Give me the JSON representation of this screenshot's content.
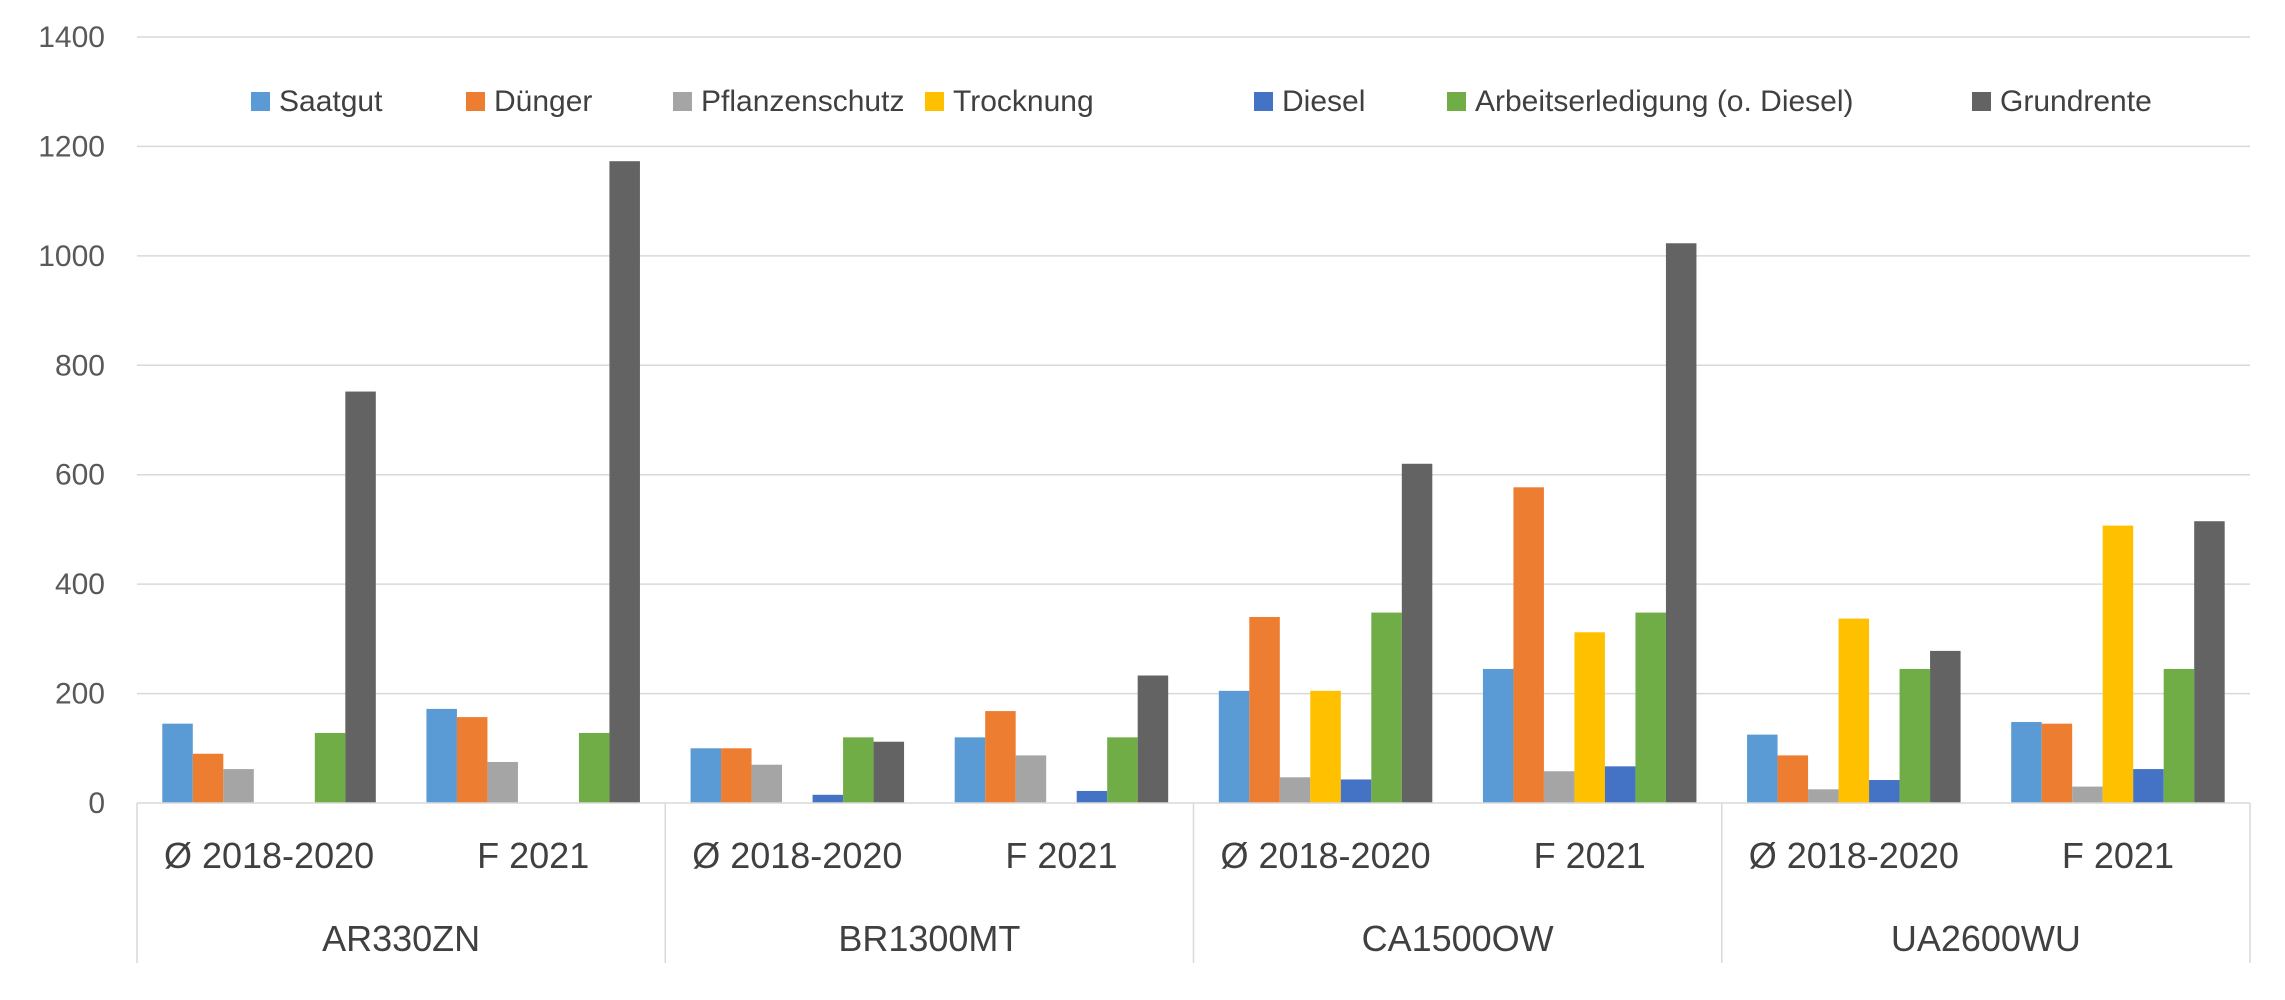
{
  "chart_data": {
    "type": "bar",
    "title": "",
    "xlabel": "",
    "ylabel": "",
    "ylim": [
      0,
      1400
    ],
    "yticks": [
      0,
      200,
      400,
      600,
      800,
      1000,
      1200,
      1400
    ],
    "grid": true,
    "legend": "top",
    "groups": [
      "AR330ZN",
      "BR1300MT",
      "CA1500OW",
      "UA2600WU"
    ],
    "subcategories": [
      "Ø 2018-2020",
      "F 2021"
    ],
    "categories": [
      "AR330ZN Ø 2018-2020",
      "AR330ZN F 2021",
      "BR1300MT Ø 2018-2020",
      "BR1300MT F 2021",
      "CA1500OW Ø 2018-2020",
      "CA1500OW F 2021",
      "UA2600WU Ø 2018-2020",
      "UA2600WU F 2021"
    ],
    "series": [
      {
        "name": "Saatgut",
        "color": "#5B9BD5",
        "values": [
          145,
          172,
          100,
          120,
          205,
          245,
          125,
          148
        ]
      },
      {
        "name": "Dünger",
        "color": "#ED7D31",
        "values": [
          90,
          157,
          100,
          168,
          340,
          577,
          87,
          145
        ]
      },
      {
        "name": "Pflanzenschutz",
        "color": "#A5A5A5",
        "values": [
          62,
          75,
          70,
          87,
          47,
          58,
          25,
          30
        ]
      },
      {
        "name": "Trocknung",
        "color": "#FFC000",
        "values": [
          0,
          0,
          0,
          0,
          205,
          312,
          337,
          507
        ]
      },
      {
        "name": "Diesel",
        "color": "#4472C4",
        "values": [
          0,
          0,
          15,
          22,
          43,
          67,
          42,
          62
        ]
      },
      {
        "name": "Arbeitserledigung (o. Diesel)",
        "color": "#70AD47",
        "values": [
          128,
          128,
          120,
          120,
          348,
          348,
          245,
          245
        ]
      },
      {
        "name": "Grundrente",
        "color": "#636363",
        "values": [
          752,
          1173,
          112,
          233,
          620,
          1023,
          278,
          515
        ]
      }
    ]
  }
}
